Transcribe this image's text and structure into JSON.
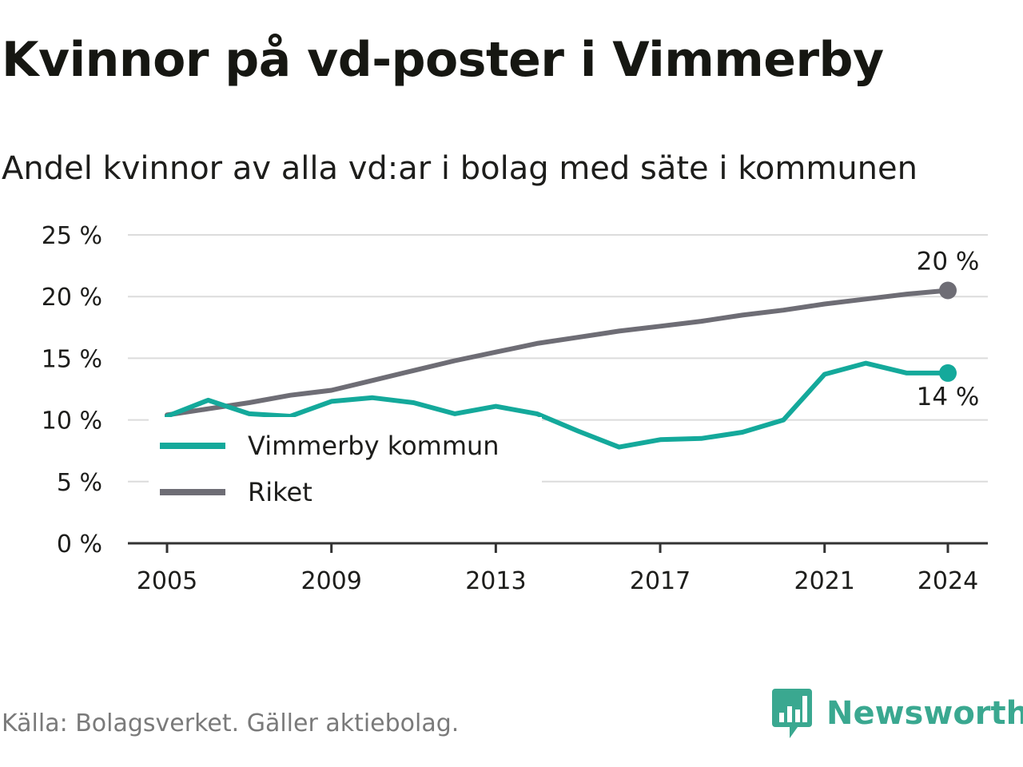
{
  "header": {
    "title": "Kvinnor på vd-poster i Vimmerby",
    "subtitle": "Andel kvinnor av alla vd:ar i bolag med säte i kommunen"
  },
  "footer": {
    "source": "Källa: Bolagsverket. Gäller aktiebolag.",
    "brand": "Newsworthy",
    "brand_icon": "bar-chart-speech-bubble-icon",
    "brand_color": "#3aa890"
  },
  "chart_data": {
    "type": "line",
    "x": [
      2005,
      2006,
      2007,
      2008,
      2009,
      2010,
      2011,
      2012,
      2013,
      2014,
      2015,
      2016,
      2017,
      2018,
      2019,
      2020,
      2021,
      2022,
      2023,
      2024
    ],
    "x_ticks": [
      2005,
      2009,
      2013,
      2017,
      2021,
      2024
    ],
    "y_ticks": [
      0,
      5,
      10,
      15,
      20,
      25
    ],
    "y_tick_labels": [
      "0 %",
      "5 %",
      "10 %",
      "15 %",
      "20 %",
      "25 %"
    ],
    "ylim": [
      0,
      25
    ],
    "grid": true,
    "legend_position": "lower-left",
    "series": [
      {
        "name": "Vimmerby kommun",
        "color": "#14a99b",
        "values": [
          10.3,
          11.6,
          10.5,
          10.3,
          11.5,
          11.8,
          11.4,
          10.5,
          11.1,
          10.5,
          9.1,
          7.8,
          8.4,
          8.5,
          9.0,
          10.0,
          13.7,
          14.6,
          13.8,
          13.8
        ],
        "end_label": "14 %"
      },
      {
        "name": "Riket",
        "color": "#6e6d75",
        "values": [
          10.4,
          10.9,
          11.4,
          12.0,
          12.4,
          13.2,
          14.0,
          14.8,
          15.5,
          16.2,
          16.7,
          17.2,
          17.6,
          18.0,
          18.5,
          18.9,
          19.4,
          19.8,
          20.2,
          20.5
        ],
        "end_label": "20 %"
      }
    ]
  }
}
